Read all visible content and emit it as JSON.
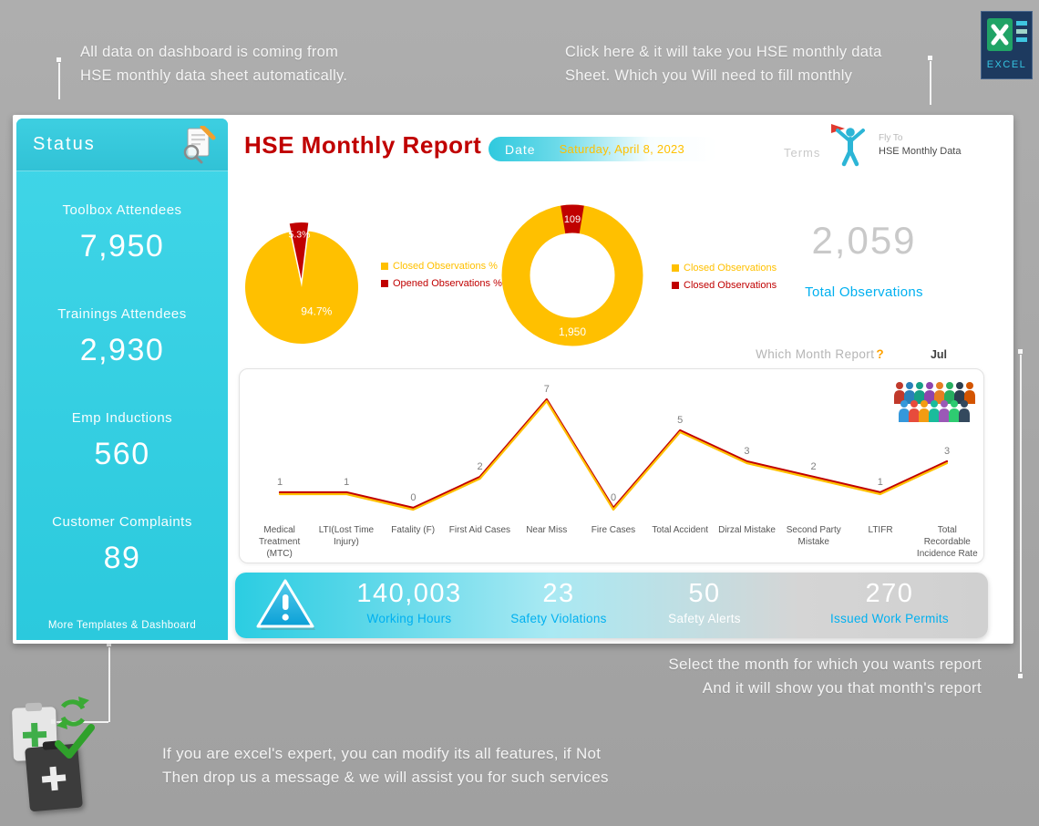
{
  "annotations": {
    "top_left_line1": "All data on dashboard is coming from",
    "top_left_line2": "HSE monthly data sheet automatically.",
    "top_right_line1": "Click here & it will take you HSE monthly data",
    "top_right_line2": "Sheet. Which you Will need to fill monthly",
    "bottom_right_line1": "Select the month for which you wants report",
    "bottom_right_line2": "And it will show you that month's report",
    "bottom_left_line1": "If you are excel's expert, you can modify its all features, if Not",
    "bottom_left_line2": "Then drop us a message & we will assist you for such services"
  },
  "excel_badge": {
    "label": "EXCEL"
  },
  "sidebar": {
    "title": "Status",
    "items": [
      {
        "label": "Toolbox Attendees",
        "value": "7,950"
      },
      {
        "label": "Trainings Attendees",
        "value": "2,930"
      },
      {
        "label": "Emp Inductions",
        "value": "560"
      },
      {
        "label": "Customer Complaints",
        "value": "89"
      }
    ],
    "footer": "More Templates & Dashboard"
  },
  "header": {
    "title": "HSE Monthly Report",
    "date_label": "Date",
    "date_value": "Saturday, April 8, 2023",
    "terms": "Terms",
    "fly_to_line1": "Fly To",
    "fly_to_line2": "HSE Monthly Data"
  },
  "observations": {
    "total_value": "2,059",
    "total_label": "Total Observations"
  },
  "month_selector": {
    "question": "Which Month Report",
    "mark": "?",
    "selected": "Jul"
  },
  "stats_bar": {
    "items": [
      {
        "value": "140,003",
        "label": "Working Hours",
        "label_color": "#00B0F0"
      },
      {
        "value": "23",
        "label": "Safety Violations",
        "label_color": "#00B0F0"
      },
      {
        "value": "50",
        "label": "Safety Alerts",
        "label_color": "#FFFFFF"
      },
      {
        "value": "270",
        "label": "Issued Work Permits",
        "label_color": "#00B0F0"
      }
    ]
  },
  "chart_data": [
    {
      "type": "pie",
      "labels": [
        "Closed Observations %",
        "Opened Observations %"
      ],
      "values": [
        94.7,
        5.3
      ],
      "data_labels": [
        "94.7%",
        "5.3%"
      ],
      "colors": [
        "#FFC000",
        "#C00000"
      ],
      "legend_position": "right"
    },
    {
      "type": "pie",
      "subtype": "donut",
      "labels": [
        "Closed Observations",
        "Closed Observations"
      ],
      "values": [
        1950,
        109
      ],
      "data_labels": [
        "1,950",
        "109"
      ],
      "colors": [
        "#FFC000",
        "#C00000"
      ],
      "legend_position": "right"
    },
    {
      "type": "line",
      "categories": [
        "Medical Treatment (MTC)",
        "LTI(Lost Time Injury)",
        "Fatality (F)",
        "First Aid Cases",
        "Near Miss",
        "Fire Cases",
        "Total Accident",
        "Dirzal Mistake",
        "Second Party Mistake",
        "LTIFR",
        "Total Recordable Incidence Rate"
      ],
      "values": [
        1,
        1,
        0,
        2,
        7,
        0,
        5,
        3,
        2,
        1,
        3
      ],
      "ylim": [
        0,
        8
      ],
      "colors": [
        "#C00000",
        "#FFC000"
      ],
      "grid": false,
      "legend": false
    }
  ]
}
